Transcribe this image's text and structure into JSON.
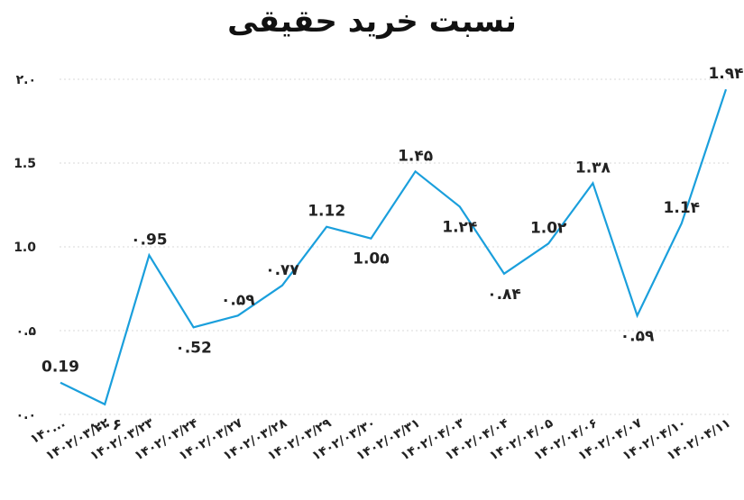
{
  "chart_data": {
    "type": "line",
    "title": "نسبت خرید حقیقی",
    "xlabel": "",
    "ylabel": "",
    "ylim": [
      0,
      2
    ],
    "yticks": [
      "۰.۰",
      "۰.۵",
      "1.0",
      "1.5",
      "۲.۰"
    ],
    "ytick_values": [
      0,
      0.5,
      1.0,
      1.5,
      2.0
    ],
    "grid": true,
    "line_color": "#1a9fdc",
    "categories": [
      "۱۴۰...",
      "۱۴۰۲/۰۳/۲۲",
      "۱۴۰۲/۰۳/۲۳",
      "۱۴۰۲/۰۳/۲۴",
      "۱۴۰۲/۰۳/۲۷",
      "۱۴۰۲/۰۳/۲۸",
      "۱۴۰۲/۰۳/۲۹",
      "۱۴۰۲/۰۳/۳۰",
      "۱۴۰۲/۰۳/۳۱",
      "۱۴۰۲/۰۴/۰۳",
      "۱۴۰۲/۰۴/۰۴",
      "۱۴۰۲/۰۴/۰۵",
      "۱۴۰۲/۰۴/۰۶",
      "۱۴۰۲/۰۴/۰۷",
      "۱۴۰۲/۰۴/۱۰",
      "۱۴۰۲/۰۴/۱۱"
    ],
    "series": [
      {
        "values": [
          0.19,
          0.06,
          0.95,
          0.52,
          0.59,
          0.77,
          1.12,
          1.05,
          1.45,
          1.24,
          0.84,
          1.02,
          1.38,
          0.59,
          1.14,
          1.94
        ],
        "labels": [
          "0.19",
          "۰.۰۶",
          "۰.95",
          "۰.52",
          "۰.۵۹",
          "۰.۷۷",
          "1.12",
          "1.0۵",
          "1.۴۵",
          "1.۲۴",
          "۰.۸۴",
          "1.0۲",
          "1.۳۸",
          "۰.۵۹",
          "1.1۴",
          "1.۹۴"
        ]
      }
    ]
  }
}
